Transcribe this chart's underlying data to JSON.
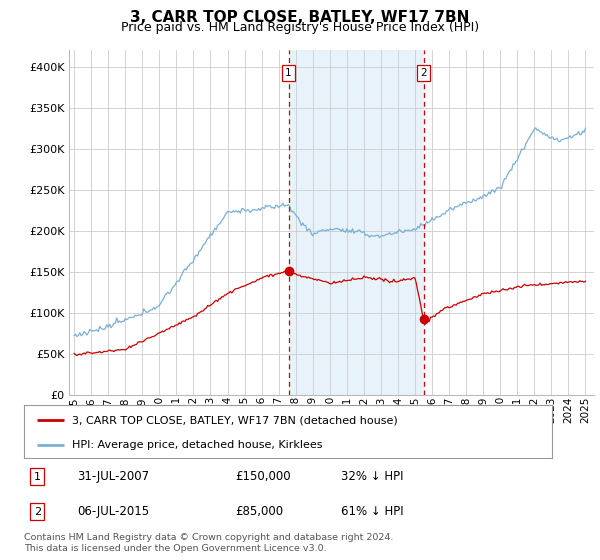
{
  "title": "3, CARR TOP CLOSE, BATLEY, WF17 7BN",
  "subtitle": "Price paid vs. HM Land Registry's House Price Index (HPI)",
  "property_label": "3, CARR TOP CLOSE, BATLEY, WF17 7BN (detached house)",
  "hpi_label": "HPI: Average price, detached house, Kirklees",
  "footnote": "Contains HM Land Registry data © Crown copyright and database right 2024.\nThis data is licensed under the Open Government Licence v3.0.",
  "transactions": [
    {
      "id": 1,
      "date": "31-JUL-2007",
      "price": 150000,
      "pct": "32%",
      "direction": "↓",
      "year": 2007.58
    },
    {
      "id": 2,
      "date": "06-JUL-2015",
      "price": 85000,
      "pct": "61%",
      "direction": "↓",
      "year": 2015.51
    }
  ],
  "ylim": [
    0,
    420000
  ],
  "yticks": [
    0,
    50000,
    100000,
    150000,
    200000,
    250000,
    300000,
    350000,
    400000
  ],
  "xlim_left": 1994.7,
  "xlim_right": 2025.5,
  "background_color": "#ffffff",
  "plot_bg_color": "#ffffff",
  "grid_color": "#cccccc",
  "hpi_color": "#7bafd4",
  "property_color": "#cc0000",
  "vline_color": "#cc0000",
  "highlight_color": "#d8eaf7",
  "title_fontsize": 11,
  "subtitle_fontsize": 9,
  "tick_fontsize": 8
}
